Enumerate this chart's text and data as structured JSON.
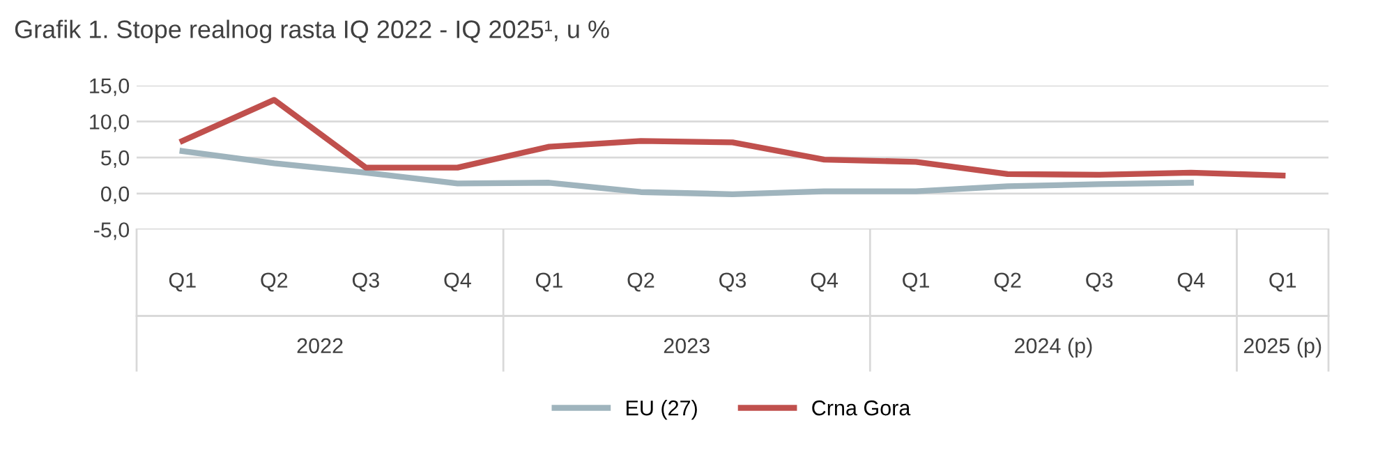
{
  "chart_data": {
    "type": "line",
    "title": "Grafik 1. Stope realnog rasta IQ 2022 - IQ 2025¹, u %",
    "categories": [
      "Q1",
      "Q2",
      "Q3",
      "Q4",
      "Q1",
      "Q2",
      "Q3",
      "Q4",
      "Q1",
      "Q2",
      "Q3",
      "Q4",
      "Q1"
    ],
    "series": [
      {
        "name": "EU (27)",
        "color": "#9fb4bd",
        "values": [
          5.9,
          4.2,
          2.9,
          1.4,
          1.5,
          0.2,
          -0.1,
          0.3,
          0.3,
          1.0,
          1.3,
          1.5,
          null
        ]
      },
      {
        "name": "Crna Gora",
        "color": "#c0504d",
        "values": [
          7.3,
          13.0,
          3.6,
          3.6,
          6.5,
          7.3,
          7.1,
          4.7,
          4.4,
          2.7,
          2.6,
          2.9,
          2.5
        ]
      }
    ],
    "annotations": [
      "2022",
      "2023",
      "2024 (p)",
      "2025 (p)"
    ],
    "ylim": [
      -5,
      15
    ],
    "yticks": [
      {
        "value": -5,
        "label": "-5,0"
      },
      {
        "value": 0,
        "label": "0,0"
      },
      {
        "value": 5,
        "label": "5,0"
      },
      {
        "value": 10,
        "label": "10,0"
      },
      {
        "value": 15,
        "label": "15,0"
      }
    ],
    "grid": "y",
    "legend": "bottom",
    "line_style": "solid",
    "marker": "none"
  }
}
